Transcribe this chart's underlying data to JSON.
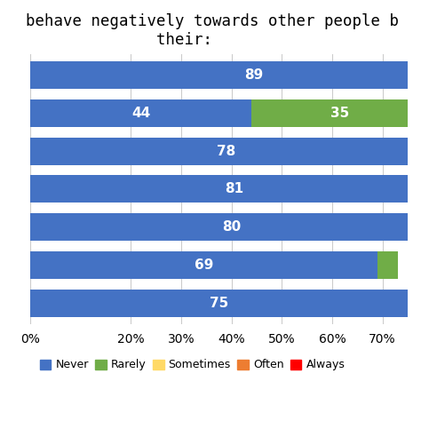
{
  "title_line1": "behave negatively towards other people b",
  "title_line2": "              their:",
  "bars": [
    {
      "never": 89,
      "rarely": 0,
      "sometimes": 0,
      "often": 0,
      "always": 0
    },
    {
      "never": 44,
      "rarely": 35,
      "sometimes": 0,
      "often": 0,
      "always": 0
    },
    {
      "never": 78,
      "rarely": 0,
      "sometimes": 0,
      "often": 0,
      "always": 0
    },
    {
      "never": 81,
      "rarely": 0,
      "sometimes": 0,
      "often": 0,
      "always": 0
    },
    {
      "never": 80,
      "rarely": 0,
      "sometimes": 0,
      "often": 0,
      "always": 0
    },
    {
      "never": 69,
      "rarely": 4,
      "sometimes": 0,
      "often": 0,
      "always": 0
    },
    {
      "never": 75,
      "rarely": 0,
      "sometimes": 0,
      "often": 0,
      "always": 0
    }
  ],
  "categories": [
    "Never",
    "Rarely",
    "Sometimes",
    "Often",
    "Always"
  ],
  "colors": {
    "never": "#4472C4",
    "rarely": "#70AD47",
    "sometimes": "#FFD966",
    "often": "#ED7D31",
    "always": "#FF0000"
  },
  "xlim": [
    0,
    75
  ],
  "xticks": [
    0,
    20,
    30,
    40,
    50,
    60,
    70
  ],
  "xtick_labels": [
    "0%",
    "20%",
    "30%",
    "40%",
    "50%",
    "60%",
    "70%"
  ],
  "bar_height": 0.72,
  "background_color": "#FFFFFF",
  "text_color": "#FFFFFF",
  "label_fontsize": 11,
  "title_fontsize": 12.5,
  "grid_color": "#CCCCCC"
}
